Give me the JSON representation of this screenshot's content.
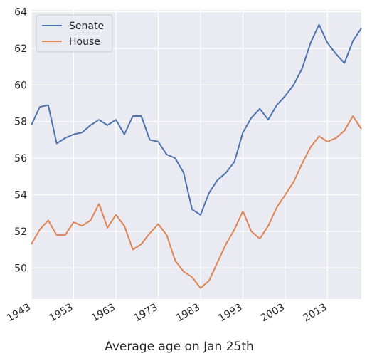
{
  "chart_data": {
    "type": "line",
    "xlabel": "Average age on Jan 25th",
    "x": [
      1943,
      1945,
      1947,
      1949,
      1951,
      1953,
      1955,
      1957,
      1959,
      1961,
      1963,
      1965,
      1967,
      1969,
      1971,
      1973,
      1975,
      1977,
      1979,
      1981,
      1983,
      1985,
      1987,
      1989,
      1991,
      1993,
      1995,
      1997,
      1999,
      2001,
      2003,
      2005,
      2007,
      2009,
      2011,
      2013,
      2015,
      2017,
      2019,
      2021
    ],
    "series": [
      {
        "name": "Senate",
        "color": "#4c72b0",
        "values": [
          57.8,
          58.8,
          58.9,
          56.8,
          57.1,
          57.3,
          57.4,
          57.8,
          58.1,
          57.8,
          58.1,
          57.3,
          58.3,
          58.3,
          57.0,
          56.9,
          56.2,
          56.0,
          55.2,
          53.2,
          52.9,
          54.1,
          54.8,
          55.2,
          55.8,
          57.4,
          58.2,
          58.7,
          58.1,
          58.9,
          59.4,
          60.0,
          60.9,
          62.3,
          63.3,
          62.3,
          61.7,
          61.2,
          62.4,
          63.1
        ]
      },
      {
        "name": "House",
        "color": "#dd8452",
        "values": [
          51.3,
          52.1,
          52.6,
          51.8,
          51.8,
          52.5,
          52.3,
          52.6,
          53.5,
          52.2,
          52.9,
          52.3,
          51.0,
          51.3,
          51.9,
          52.4,
          51.8,
          50.4,
          49.8,
          49.5,
          48.9,
          49.3,
          50.3,
          51.3,
          52.1,
          53.1,
          52.0,
          51.6,
          52.3,
          53.3,
          54.0,
          54.7,
          55.7,
          56.6,
          57.2,
          56.9,
          57.1,
          57.5,
          58.3,
          57.6
        ]
      }
    ],
    "xlim": [
      1943,
      2021
    ],
    "xticks": [
      1943,
      1953,
      1963,
      1973,
      1983,
      1993,
      2003,
      2013
    ],
    "ylim": [
      48.3,
      64.1
    ],
    "yticks": [
      50,
      52,
      54,
      56,
      58,
      60,
      62,
      64
    ],
    "grid": true,
    "legend": "upper left"
  }
}
